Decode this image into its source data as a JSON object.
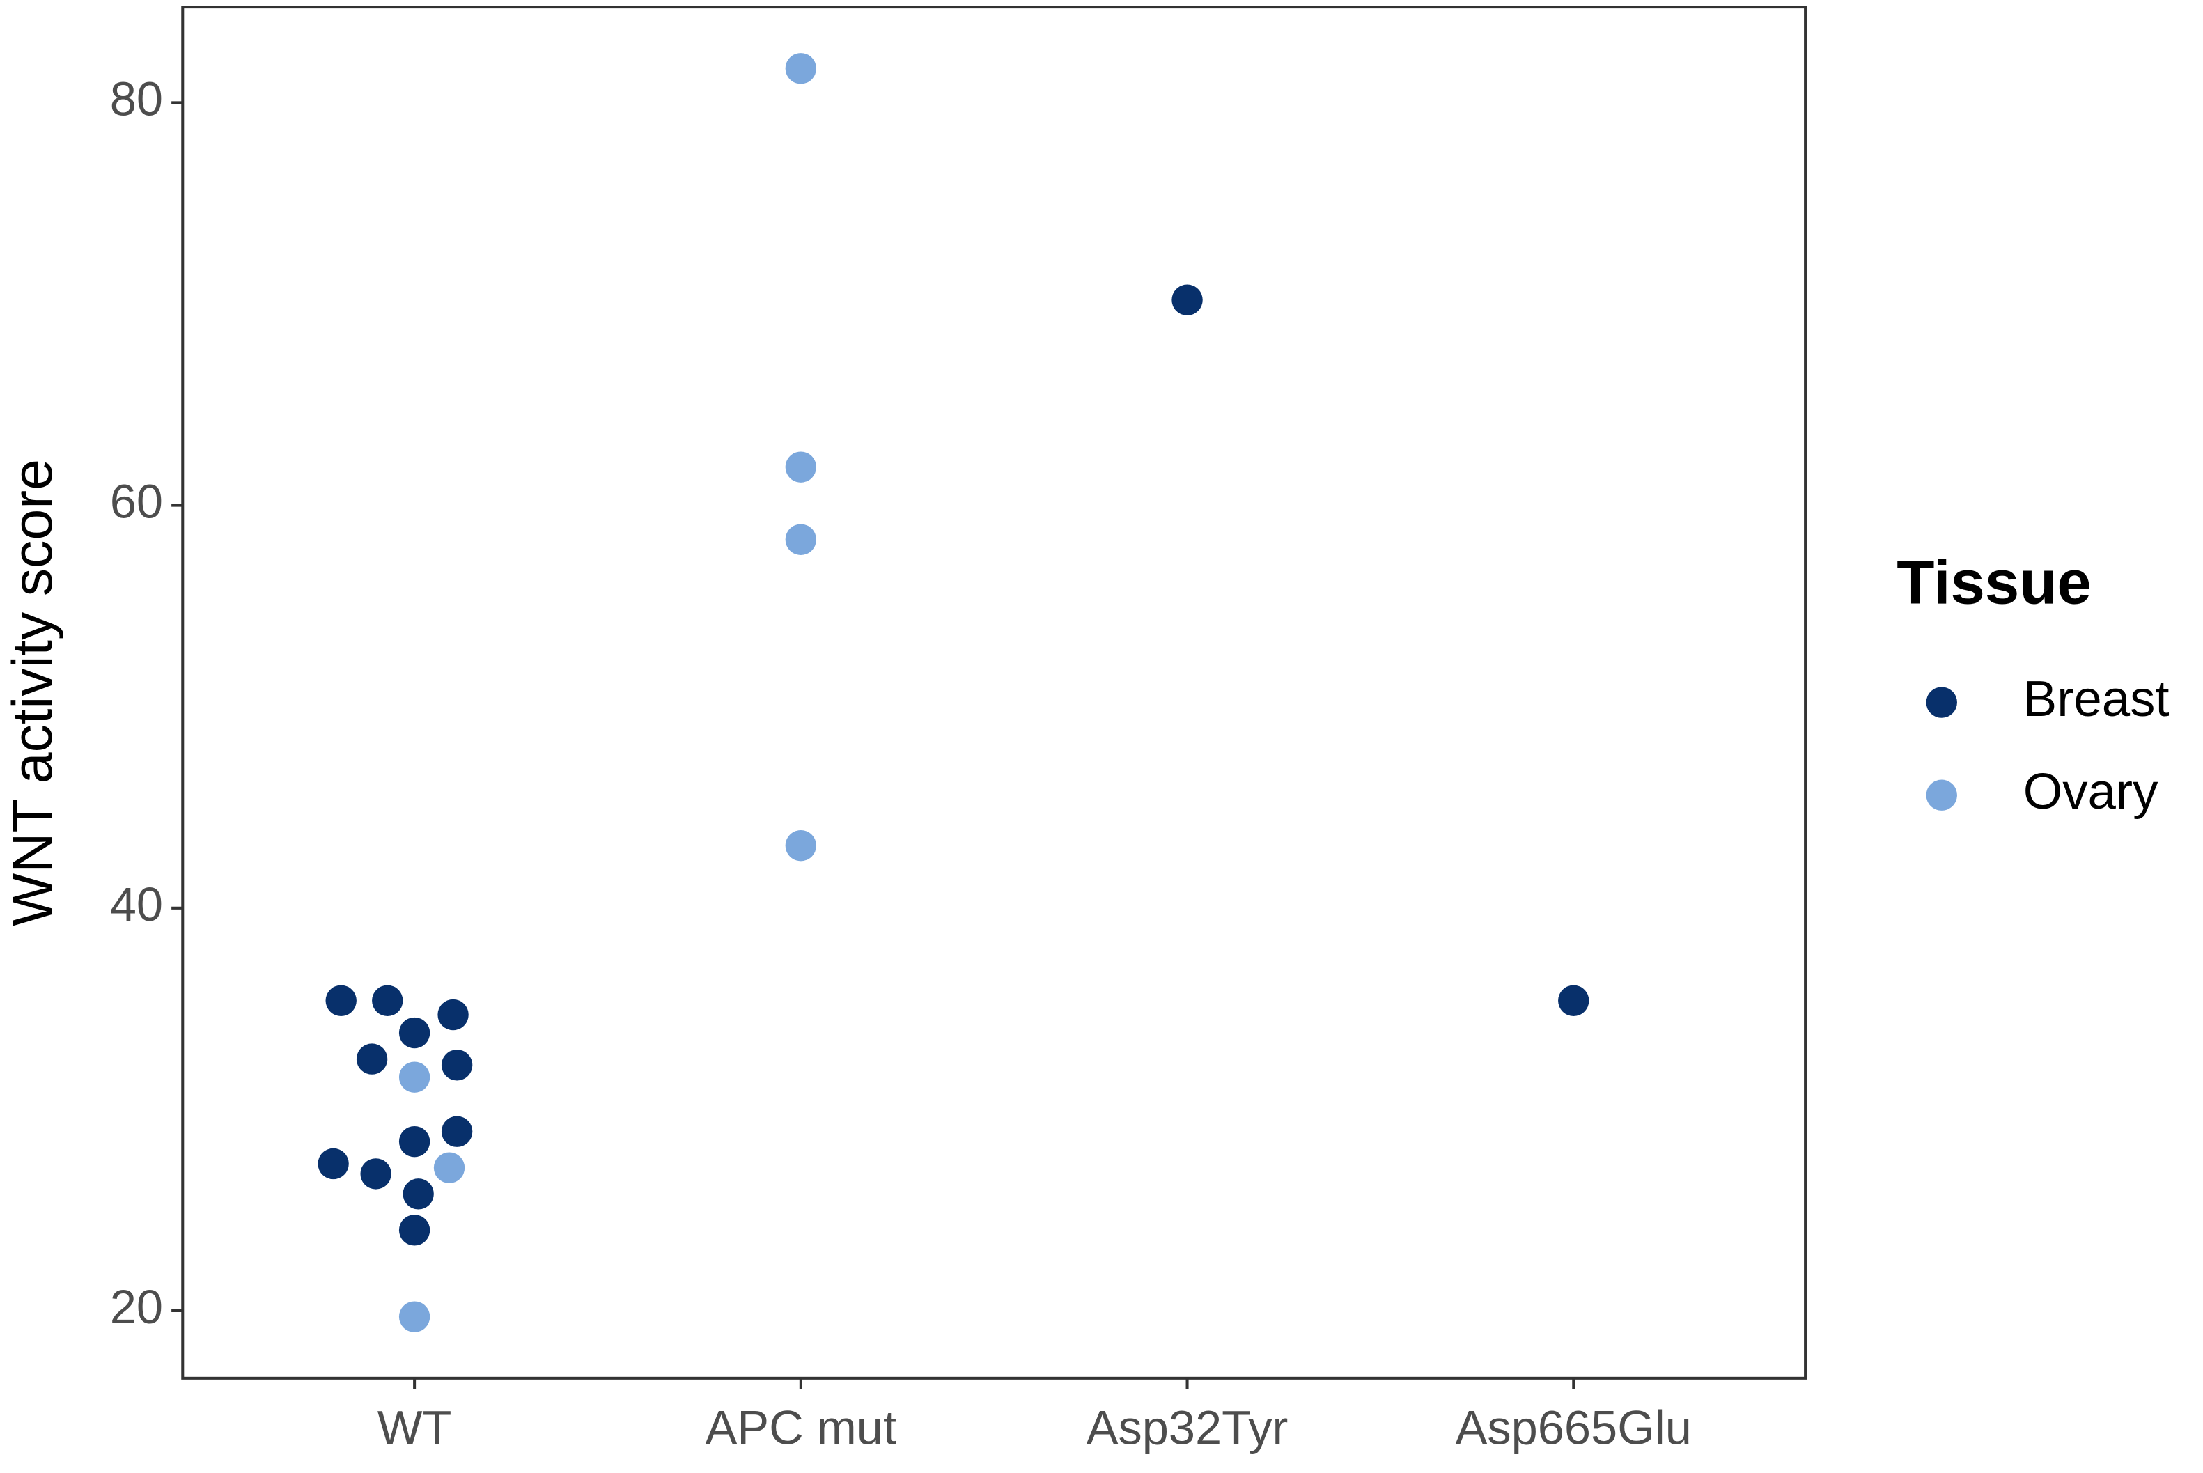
{
  "chart_data": {
    "type": "scatter",
    "y_label": "WNT activity score",
    "legend_title": "Tissue",
    "legend_position": "right",
    "grid": false,
    "xlim": [
      0.4,
      4.6
    ],
    "xticks": [
      {
        "value": 1,
        "label": "WT"
      },
      {
        "value": 2,
        "label": "APC mut"
      },
      {
        "value": 3,
        "label": "Asp32Tyr"
      },
      {
        "value": 4,
        "label": "Asp665Glu"
      }
    ],
    "ylim": [
      16.65,
      84.75
    ],
    "yticks": [
      20,
      40,
      60,
      80
    ],
    "series": [
      {
        "name": "Breast",
        "color": "#08306b",
        "x": [
          0.81,
          0.93,
          1.1,
          1.0,
          0.89,
          1.11,
          1.11,
          1.0,
          0.79,
          0.9,
          1.01,
          1.0,
          3.0,
          4.0
        ],
        "values": [
          35.4,
          35.4,
          34.7,
          33.8,
          32.5,
          32.2,
          28.9,
          28.4,
          27.3,
          26.8,
          25.8,
          24.0,
          70.2,
          35.4
        ]
      },
      {
        "name": "Ovary",
        "color": "#7ba7dc",
        "x": [
          1.0,
          1.09,
          1.0,
          2.0,
          2.0,
          2.0,
          2.0
        ],
        "values": [
          31.6,
          27.1,
          19.7,
          81.7,
          61.9,
          58.3,
          43.1
        ]
      }
    ]
  }
}
